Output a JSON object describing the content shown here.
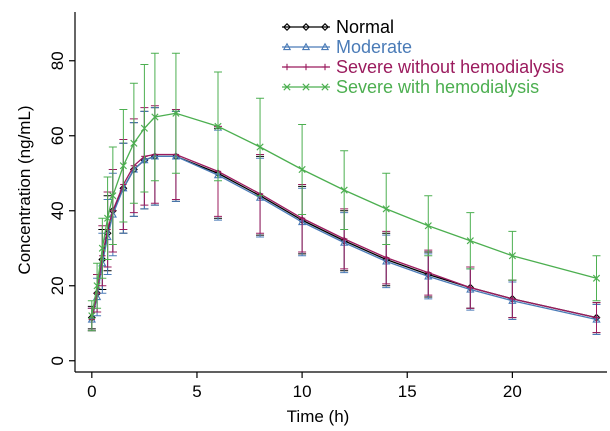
{
  "chart_data": {
    "type": "line",
    "title": "",
    "xlabel": "Time (h)",
    "ylabel": "Concentration (ng/mL)",
    "xlim": [
      -0.8,
      24.5
    ],
    "ylim": [
      -3,
      93
    ],
    "xticks": [
      0,
      5,
      10,
      15,
      20
    ],
    "yticks": [
      0,
      20,
      40,
      60,
      80
    ],
    "error_bars": "vertical (± SD)",
    "legend_position": "top-right",
    "series": [
      {
        "name": "Normal",
        "color": "#000000",
        "marker": "diamond-open",
        "x": [
          0,
          0.25,
          0.5,
          0.75,
          1,
          1.5,
          2,
          2.5,
          3,
          4,
          6,
          8,
          10,
          12,
          14,
          16,
          18,
          20,
          24
        ],
        "y": [
          11.5,
          18,
          27,
          34,
          40,
          46,
          51,
          53.5,
          54.5,
          54.5,
          50,
          44,
          37.5,
          32,
          27,
          23,
          19.5,
          16.5,
          11.5
        ],
        "err": [
          3,
          5,
          8,
          10,
          11,
          12,
          12.5,
          13,
          13,
          12,
          12,
          10.5,
          9,
          8,
          7,
          6,
          5.5,
          5,
          4
        ]
      },
      {
        "name": "Moderate",
        "color": "#4a7bb7",
        "marker": "triangle-open",
        "x": [
          0,
          0.25,
          0.5,
          0.75,
          1,
          1.5,
          2,
          2.5,
          3,
          4,
          6,
          8,
          10,
          12,
          14,
          16,
          18,
          20,
          24
        ],
        "y": [
          11,
          17,
          26,
          33,
          39,
          46,
          51,
          53.5,
          54.5,
          54.5,
          49.5,
          43.5,
          37,
          31.5,
          26.5,
          22.5,
          19,
          16,
          11
        ],
        "err": [
          3,
          5,
          8,
          10,
          11,
          12,
          12.5,
          13,
          13,
          12,
          12,
          10.5,
          9,
          8,
          7,
          6,
          5.5,
          5,
          4
        ]
      },
      {
        "name": "Severe without hemodialysis",
        "color": "#9b1b5e",
        "marker": "plus",
        "x": [
          0,
          0.25,
          0.5,
          0.75,
          1,
          1.5,
          2,
          2.5,
          3,
          4,
          6,
          8,
          10,
          12,
          14,
          16,
          18,
          20,
          24
        ],
        "y": [
          11,
          18,
          28,
          35,
          40,
          47,
          52,
          54.5,
          55,
          55,
          50.5,
          44.5,
          38,
          32.5,
          27.5,
          23.5,
          19.5,
          16.5,
          11.5
        ],
        "err": [
          3,
          5,
          8,
          10,
          11,
          12,
          12.5,
          13,
          13,
          12,
          12,
          10.5,
          9,
          8,
          7,
          6,
          5.5,
          5,
          4
        ]
      },
      {
        "name": "Severe with hemodialysis",
        "color": "#4caf50",
        "marker": "cross",
        "x": [
          0,
          0.25,
          0.5,
          0.75,
          1,
          1.5,
          2,
          2.5,
          3,
          4,
          6,
          8,
          10,
          12,
          14,
          16,
          18,
          20,
          24
        ],
        "y": [
          12,
          20,
          30,
          38,
          44,
          52,
          58,
          62,
          65,
          66,
          62.5,
          57,
          51,
          45.5,
          40.5,
          36,
          32,
          28,
          22
        ],
        "err": [
          4,
          6,
          8,
          11,
          13,
          15,
          16,
          17,
          17,
          16,
          14.5,
          13,
          12,
          10.5,
          9.5,
          8,
          7.5,
          6.5,
          6
        ]
      }
    ]
  }
}
